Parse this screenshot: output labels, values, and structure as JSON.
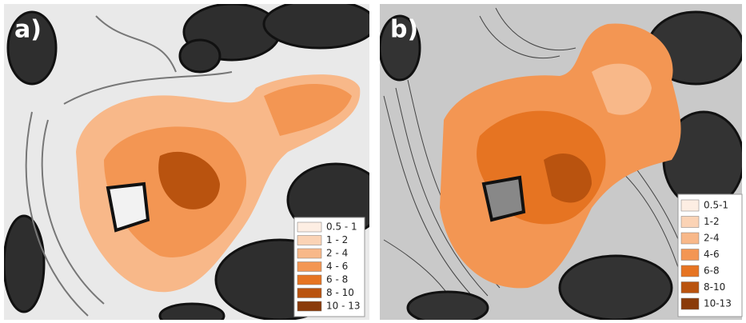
{
  "panels": [
    {
      "label": "a)",
      "legend": [
        {
          "label": "0.5 - 1",
          "color": "#fdeee3"
        },
        {
          "label": "1 - 2",
          "color": "#fbd3b5"
        },
        {
          "label": "2 - 4",
          "color": "#f8b889"
        },
        {
          "label": "4 - 6",
          "color": "#f39653"
        },
        {
          "label": "6 - 8",
          "color": "#e67422"
        },
        {
          "label": "8 - 10",
          "color": "#b9530f"
        },
        {
          "label": "10 - 13",
          "color": "#8a3b0a"
        }
      ]
    },
    {
      "label": "b)",
      "legend": [
        {
          "label": "0.5-1",
          "color": "#fdeee3"
        },
        {
          "label": "1-2",
          "color": "#fbd3b5"
        },
        {
          "label": "2-4",
          "color": "#f8b889"
        },
        {
          "label": "4-6",
          "color": "#f39653"
        },
        {
          "label": "6-8",
          "color": "#e67422"
        },
        {
          "label": "8-10",
          "color": "#b9530f"
        },
        {
          "label": "10-13",
          "color": "#8a3b0a"
        }
      ]
    }
  ]
}
